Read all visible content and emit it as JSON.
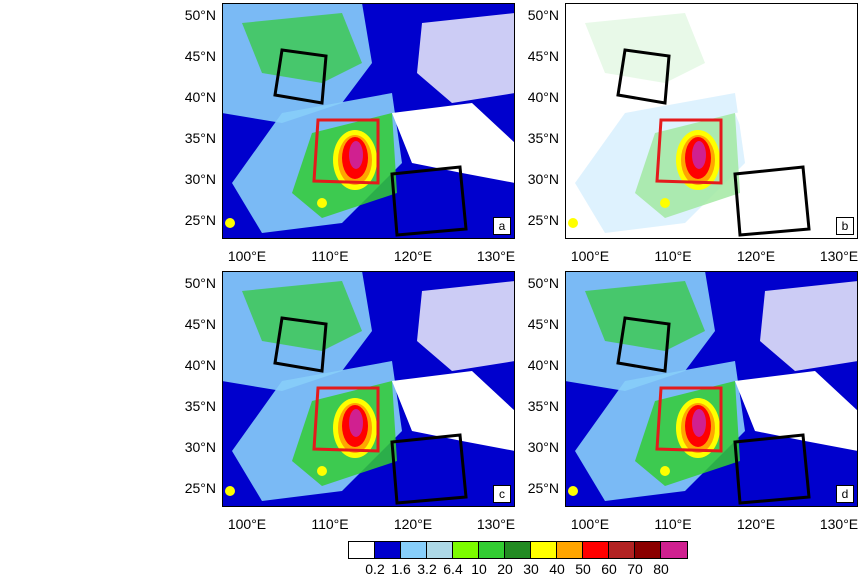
{
  "lat_labels": [
    "50°N",
    "45°N",
    "40°N",
    "35°N",
    "30°N",
    "25°N"
  ],
  "lon_labels": [
    "100°E",
    "110°E",
    "120°E",
    "130°E"
  ],
  "panels": [
    {
      "id": "a",
      "label": "a"
    },
    {
      "id": "b",
      "label": "b"
    },
    {
      "id": "c",
      "label": "c"
    },
    {
      "id": "d",
      "label": "d"
    }
  ],
  "colorbar": {
    "levels": [
      "0.2",
      "1.6",
      "3.2",
      "6.4",
      "10",
      "20",
      "30",
      "40",
      "50",
      "60",
      "70",
      "80"
    ],
    "colors": [
      "#ffffff",
      "#0000cd",
      "#87cefa",
      "#add8e6",
      "#7cfc00",
      "#32cd32",
      "#228b22",
      "#ffff00",
      "#ffa500",
      "#ff0000",
      "#b22222",
      "#8b0000",
      "#d02090"
    ]
  },
  "map_colors": {
    "frame": "#000000",
    "red_box": "#e41a1c",
    "black_box": "#000000"
  }
}
